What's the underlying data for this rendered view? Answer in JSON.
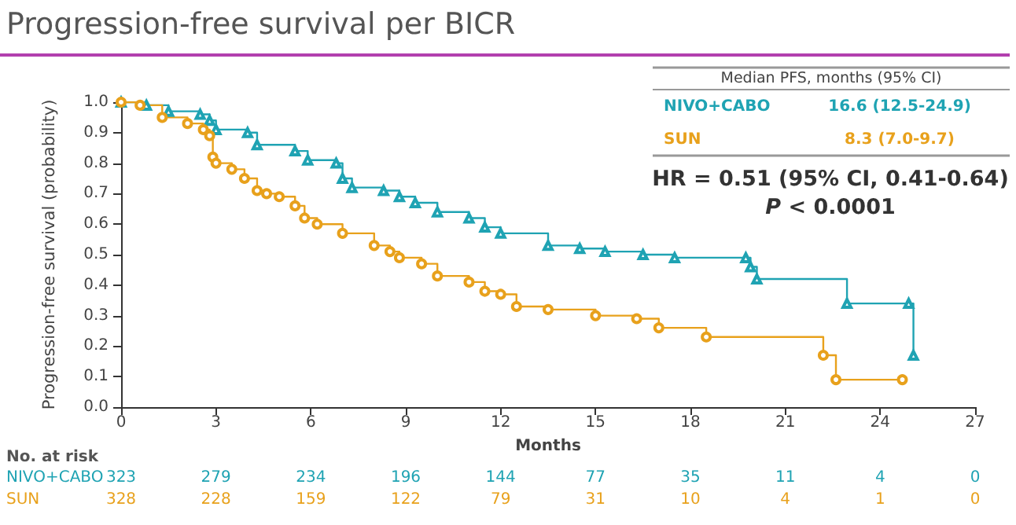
{
  "chart_data": {
    "type": "step",
    "title": "Progression-free survival per BICR",
    "xlabel": "Months",
    "ylabel": "Progression-free survival (probability)",
    "xlim": [
      0,
      27
    ],
    "xticks": [
      0,
      3,
      6,
      9,
      12,
      15,
      18,
      21,
      24,
      27
    ],
    "ylim": [
      0,
      1
    ],
    "yticks": [
      {
        "value": 0,
        "label": "0.0"
      },
      0.1,
      0.2,
      0.3,
      0.4,
      0.5,
      0.6,
      0.7,
      0.8,
      0.9,
      {
        "value": 1,
        "label": "1.0"
      }
    ],
    "series": [
      {
        "name": "NIVO+CABO",
        "color": "#1fa3b3",
        "marker": "triangle",
        "x": [
          0,
          0.8,
          1.5,
          2.5,
          2.8,
          3.0,
          4.0,
          4.3,
          5.5,
          5.9,
          6.8,
          7.0,
          7.3,
          8.3,
          8.8,
          9.3,
          10.0,
          11.0,
          11.5,
          12.0,
          13.5,
          14.5,
          15.3,
          16.5,
          17.5,
          19.75,
          19.9,
          20.1,
          22.95,
          24.9,
          25.05
        ],
        "values": [
          1.0,
          0.99,
          0.97,
          0.96,
          0.94,
          0.91,
          0.9,
          0.86,
          0.84,
          0.81,
          0.8,
          0.75,
          0.72,
          0.71,
          0.69,
          0.67,
          0.64,
          0.62,
          0.59,
          0.57,
          0.53,
          0.52,
          0.51,
          0.5,
          0.49,
          0.49,
          0.46,
          0.42,
          0.34,
          0.34,
          0.17
        ]
      },
      {
        "name": "SUN",
        "color": "#e8a11c",
        "marker": "circle",
        "x": [
          0,
          0.6,
          1.3,
          2.1,
          2.6,
          2.8,
          2.9,
          3.0,
          3.5,
          3.9,
          4.3,
          4.6,
          5.0,
          5.5,
          5.8,
          6.2,
          7.0,
          8.0,
          8.5,
          8.8,
          9.5,
          10.0,
          11.0,
          11.5,
          12.0,
          12.5,
          13.5,
          15.0,
          16.3,
          17.0,
          18.5,
          22.2,
          22.6,
          24.7
        ],
        "values": [
          1.0,
          0.99,
          0.95,
          0.93,
          0.91,
          0.89,
          0.82,
          0.8,
          0.78,
          0.75,
          0.71,
          0.7,
          0.69,
          0.66,
          0.62,
          0.6,
          0.57,
          0.53,
          0.51,
          0.49,
          0.47,
          0.43,
          0.41,
          0.38,
          0.37,
          0.33,
          0.32,
          0.3,
          0.29,
          0.26,
          0.23,
          0.17,
          0.09,
          0.09
        ]
      }
    ],
    "annotations": [
      "Median PFS, months (95% CI)",
      "16.6 (12.5-24.9)",
      "8.3 (7.0-9.7)",
      "HR = 0.51 (95% CI, 0.41-0.64)",
      "P < 0.0001",
      "No. at risk",
      "323",
      "279",
      "234",
      "196",
      "144",
      "77",
      "35",
      "11",
      "4",
      "0",
      "328",
      "228",
      "159",
      "122",
      "79",
      "31",
      "10",
      "4",
      "1",
      "0"
    ]
  }
}
